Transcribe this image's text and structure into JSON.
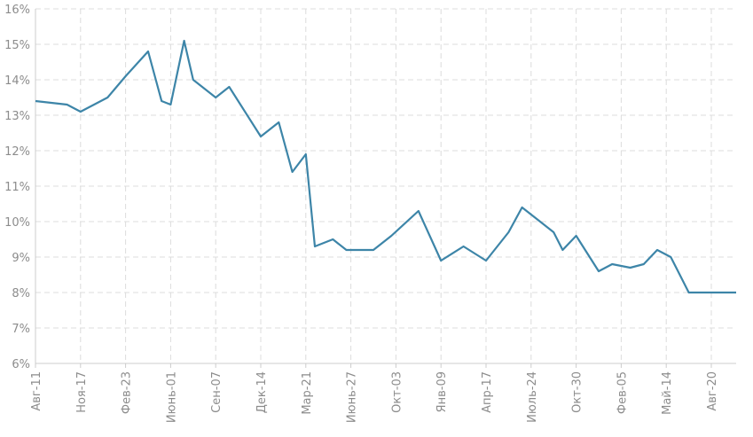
{
  "chart_data": {
    "type": "line",
    "title": "",
    "xlabel": "",
    "ylabel": "",
    "ylim": [
      6,
      16
    ],
    "yticks": [
      "6%",
      "7%",
      "8%",
      "9%",
      "10%",
      "11%",
      "12%",
      "13%",
      "14%",
      "15%",
      "16%"
    ],
    "xticks": [
      "Авг-11",
      "Ноя-17",
      "Фев-23",
      "Июнь-01",
      "Сен-07",
      "Дек-14",
      "Мар-21",
      "Июнь-27",
      "Окт-03",
      "Янв-09",
      "Апр-17",
      "Июль-24",
      "Окт-30",
      "Фев-05",
      "Май-14",
      "Авг-20"
    ],
    "grid": true,
    "line_color": "#3d85a8",
    "series": [
      {
        "values_x": [
          0,
          0.7,
          1.0,
          1.6,
          2.0,
          2.5,
          2.8,
          3.0,
          3.3,
          3.5,
          4.0,
          4.3,
          5.0,
          5.4,
          5.7,
          6.0,
          6.2,
          6.6,
          6.9,
          7.0,
          7.5,
          7.9,
          8.5,
          9.0,
          9.5,
          10.0,
          10.5,
          10.8,
          11.2,
          11.5,
          11.7,
          12.0,
          12.5,
          12.8,
          13.2,
          13.5,
          13.8,
          14.1,
          14.5,
          14.8,
          15.0,
          15.3,
          15.6
        ],
        "values": [
          13.4,
          13.3,
          13.1,
          13.5,
          14.1,
          14.8,
          13.4,
          13.3,
          15.1,
          14.0,
          13.5,
          13.8,
          12.4,
          12.8,
          11.4,
          11.9,
          9.3,
          9.5,
          9.2,
          9.2,
          9.2,
          9.6,
          10.3,
          8.9,
          9.3,
          8.9,
          9.7,
          10.4,
          10.0,
          9.7,
          9.2,
          9.6,
          8.6,
          8.8,
          8.7,
          8.8,
          9.2,
          9.0,
          8.0,
          8.0,
          8.0,
          8.0,
          8.0
        ]
      }
    ]
  }
}
